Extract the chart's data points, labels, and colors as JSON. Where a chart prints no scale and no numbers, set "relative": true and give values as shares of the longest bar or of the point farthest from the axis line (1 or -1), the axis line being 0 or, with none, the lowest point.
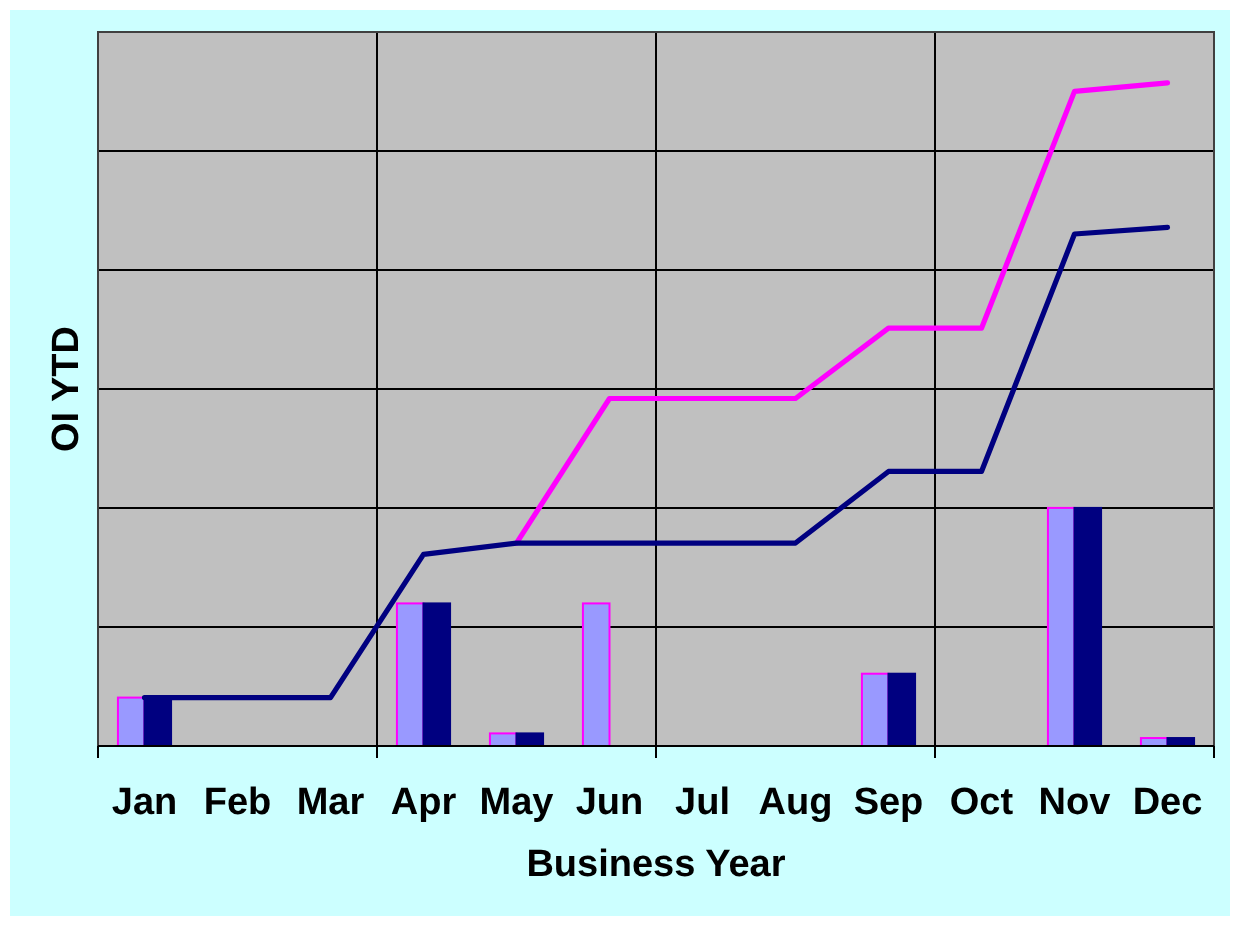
{
  "chart_data": {
    "type": "bar",
    "relative": true,
    "xlabel": "Business Year",
    "ylabel": "OI YTD",
    "categories": [
      "Jan",
      "Feb",
      "Mar",
      "Apr",
      "May",
      "Jun",
      "Jul",
      "Aug",
      "Sep",
      "Oct",
      "Nov",
      "Dec"
    ],
    "series": [
      {
        "color": "#9999ff",
        "values": [
          0.073,
          null,
          null,
          0.215,
          0.019,
          0.215,
          null,
          null,
          0.109,
          null,
          0.359,
          0.012
        ]
      },
      {
        "color": "#000080",
        "values": [
          0.073,
          null,
          null,
          0.215,
          0.019,
          null,
          null,
          null,
          0.109,
          null,
          0.359,
          0.012
        ]
      },
      {
        "type": "line",
        "color": "#ff00ff",
        "values": [
          null,
          null,
          null,
          null,
          0.306,
          0.524,
          0.524,
          0.524,
          0.63,
          0.63,
          0.987,
          1
        ]
      },
      {
        "type": "line",
        "color": "#000080",
        "values": [
          0.073,
          0.073,
          0.073,
          0.289,
          0.306,
          0.306,
          0.306,
          0.306,
          0.414,
          0.414,
          0.772,
          0.782
        ]
      }
    ],
    "grid": true,
    "line_style": "solid"
  }
}
